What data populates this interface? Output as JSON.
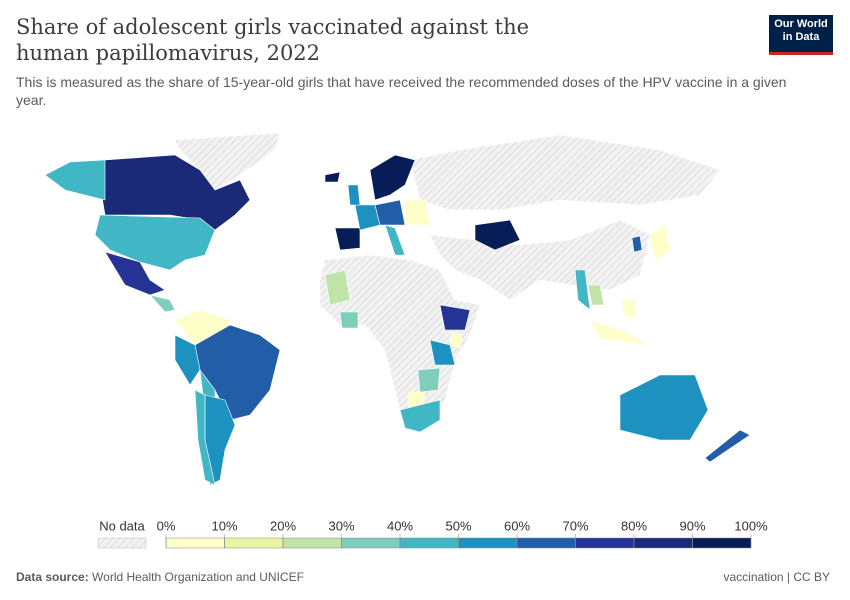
{
  "header": {
    "title": "Share of adolescent girls vaccinated against the human papillomavirus, 2022",
    "subtitle": "This is measured as the share of 15-year-old girls that have received the recommended doses of the HPV vaccine in a given year.",
    "logo": "Our World in Data"
  },
  "map": {
    "type": "choropleth",
    "legend": {
      "no_data": "No data",
      "ticks": [
        {
          "value": 0,
          "label": "0%"
        },
        {
          "value": 10,
          "label": "10%"
        },
        {
          "value": 20,
          "label": "20%"
        },
        {
          "value": 30,
          "label": "30%"
        },
        {
          "value": 40,
          "label": "40%"
        },
        {
          "value": 50,
          "label": "50%"
        },
        {
          "value": 60,
          "label": "60%"
        },
        {
          "value": 70,
          "label": "70%"
        },
        {
          "value": 80,
          "label": "80%"
        },
        {
          "value": 90,
          "label": "90%"
        },
        {
          "value": 100,
          "label": "100%"
        }
      ],
      "colors": [
        "#fefec8",
        "#e8f5a3",
        "#c0e4a8",
        "#7fcdbb",
        "#41b6c4",
        "#1d91c0",
        "#225ea8",
        "#253494",
        "#1b2a78",
        "#081d58"
      ]
    }
  },
  "footer": {
    "source_label": "Data source:",
    "source": "World Health Organization and UNICEF",
    "right": "vaccination | CC BY"
  }
}
